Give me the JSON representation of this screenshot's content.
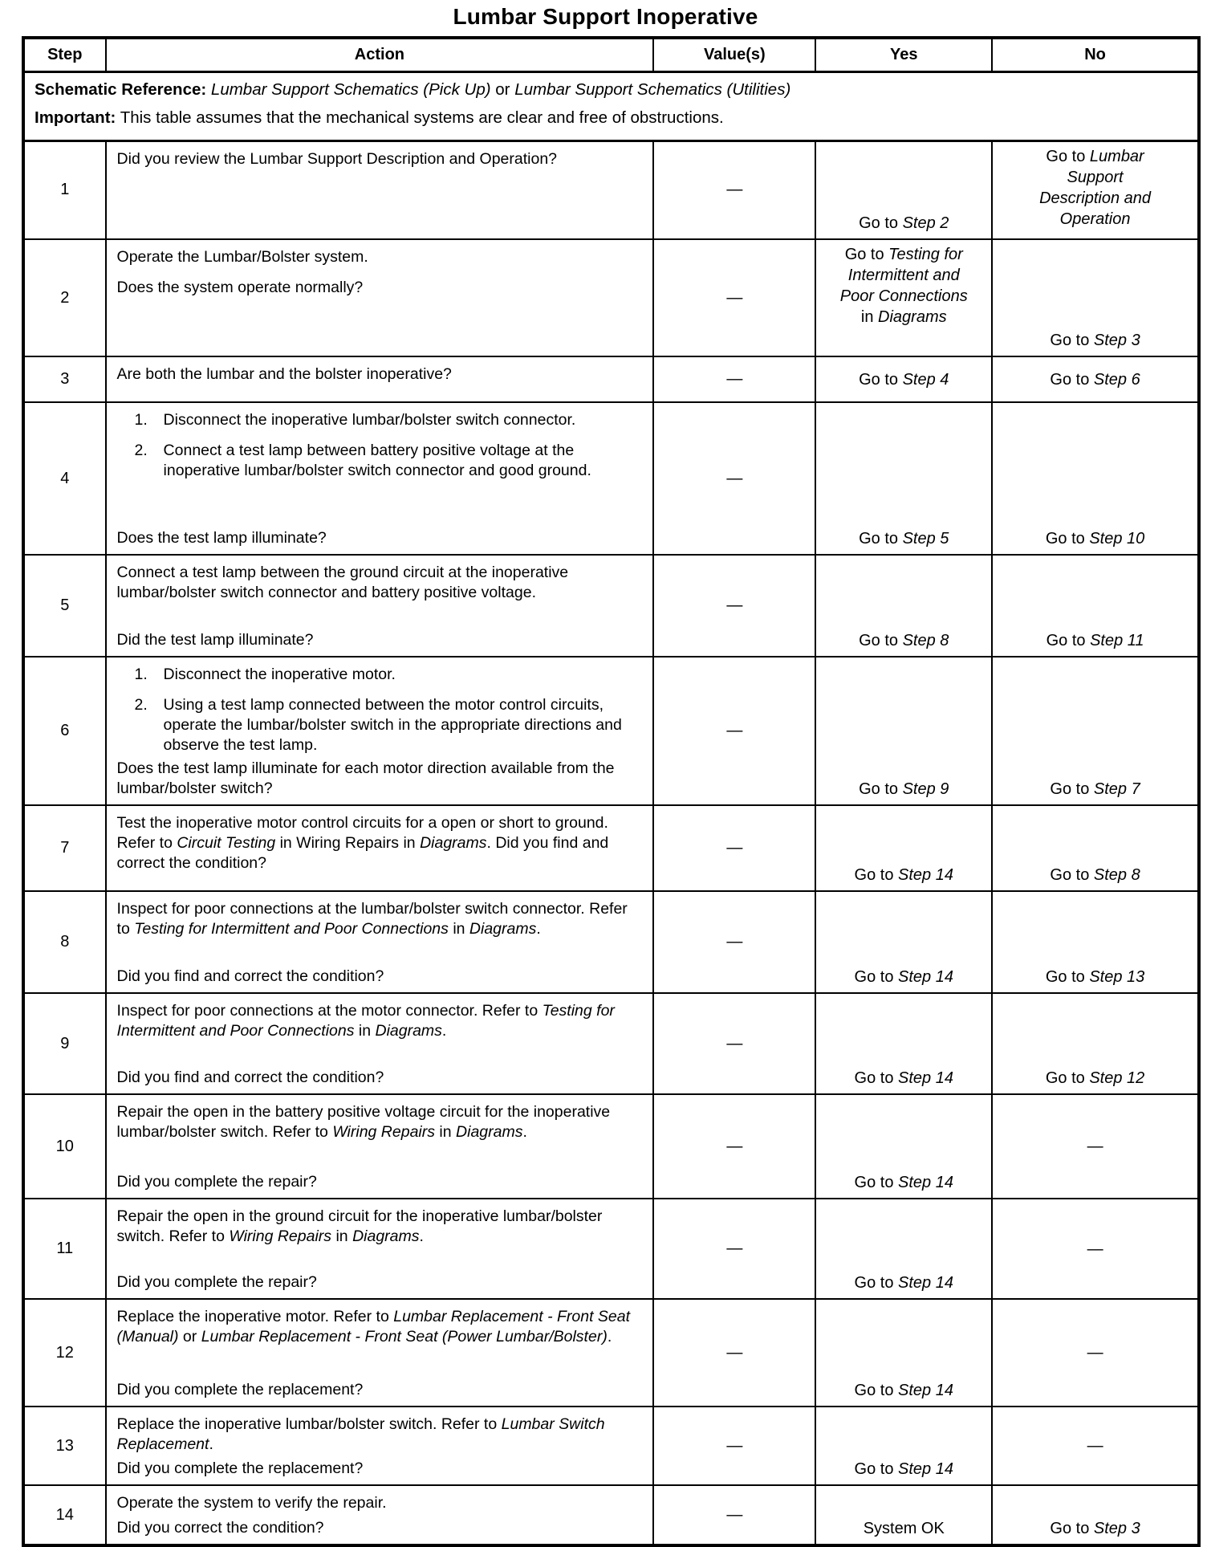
{
  "title": "Lumbar Support Inoperative",
  "table": {
    "headers": [
      "Step",
      "Action",
      "Value(s)",
      "Yes",
      "No"
    ],
    "schematic": {
      "label": "Schematic Reference:",
      "ref1": "Lumbar Support Schematics (Pick Up)",
      "or_word": "or",
      "ref2": "Lumbar Support Schematics (Utilities)"
    },
    "important": {
      "label": "Important:",
      "text": "This table assumes that the mechanical systems are clear and free of obstructions."
    },
    "rows": [
      {
        "step": "1",
        "action": [
          {
            "seg": [
              {
                "t": "Did you review the Lumbar Support Description and Operation?"
              }
            ]
          }
        ],
        "value": "—",
        "yes": {
          "pos": "bottom",
          "seg": [
            {
              "t": "Go to "
            },
            {
              "t": "Step 2",
              "i": true
            }
          ]
        },
        "no": {
          "pos": "top",
          "seg": [
            {
              "t": "Go to "
            },
            {
              "t": "Lumbar\nSupport\nDescription and\nOperation",
              "i": true
            }
          ]
        }
      },
      {
        "step": "2",
        "action": [
          {
            "seg": [
              {
                "t": "Operate the Lumbar/Bolster system."
              }
            ]
          },
          {
            "seg": [
              {
                "t": "Does the system operate normally?"
              }
            ]
          }
        ],
        "value": "—",
        "yes": {
          "pos": "top",
          "seg": [
            {
              "t": "Go to "
            },
            {
              "t": "Testing for\nIntermittent and\nPoor Connections",
              "i": true
            },
            {
              "t": "\nin "
            },
            {
              "t": "Diagrams",
              "i": true
            }
          ]
        },
        "no": {
          "pos": "bottom",
          "seg": [
            {
              "t": "Go to "
            },
            {
              "t": "Step 3",
              "i": true
            }
          ]
        }
      },
      {
        "step": "3",
        "action": [
          {
            "seg": [
              {
                "t": "Are both the lumbar and the bolster inoperative?"
              }
            ]
          }
        ],
        "value": "—",
        "yes": {
          "pos": "center",
          "seg": [
            {
              "t": "Go to "
            },
            {
              "t": "Step 4",
              "i": true
            }
          ]
        },
        "no": {
          "pos": "center",
          "seg": [
            {
              "t": "Go to "
            },
            {
              "t": "Step 6",
              "i": true
            }
          ]
        }
      },
      {
        "step": "4",
        "qb": true,
        "action": [
          {
            "n": "1.",
            "seg": [
              {
                "t": "Disconnect the inoperative lumbar/bolster switch connector."
              }
            ]
          },
          {
            "n": "2.",
            "seg": [
              {
                "t": "Connect a test lamp between battery positive voltage at the inoperative lumbar/bolster switch connector and good ground."
              }
            ]
          },
          {
            "seg": [
              {
                "t": "Does the test lamp illuminate?"
              }
            ]
          }
        ],
        "value": "—",
        "yes": {
          "pos": "bottom",
          "seg": [
            {
              "t": "Go to "
            },
            {
              "t": "Step 5",
              "i": true
            }
          ]
        },
        "no": {
          "pos": "bottom",
          "seg": [
            {
              "t": "Go to "
            },
            {
              "t": "Step 10",
              "i": true
            }
          ]
        }
      },
      {
        "step": "5",
        "qb": true,
        "action": [
          {
            "seg": [
              {
                "t": "Connect a test lamp between the ground circuit at the inoperative lumbar/bolster switch connector and battery positive voltage."
              }
            ]
          },
          {
            "seg": [
              {
                "t": "Did the test lamp illuminate?"
              }
            ]
          }
        ],
        "value": "—",
        "yes": {
          "pos": "bottom",
          "seg": [
            {
              "t": "Go to "
            },
            {
              "t": "Step 8",
              "i": true
            }
          ]
        },
        "no": {
          "pos": "bottom",
          "seg": [
            {
              "t": "Go to "
            },
            {
              "t": "Step 11",
              "i": true
            }
          ]
        }
      },
      {
        "step": "6",
        "qb": true,
        "action": [
          {
            "n": "1.",
            "seg": [
              {
                "t": "Disconnect the inoperative motor."
              }
            ]
          },
          {
            "n": "2.",
            "seg": [
              {
                "t": "Using a test lamp connected between the motor control circuits, operate the lumbar/bolster switch in the appropriate directions and observe the test lamp."
              }
            ]
          },
          {
            "seg": [
              {
                "t": "Does the test lamp illuminate for each motor direction available from the lumbar/bolster switch?"
              }
            ]
          }
        ],
        "value": "—",
        "yes": {
          "pos": "bottom",
          "seg": [
            {
              "t": "Go to "
            },
            {
              "t": "Step 9",
              "i": true
            }
          ]
        },
        "no": {
          "pos": "bottom",
          "seg": [
            {
              "t": "Go to "
            },
            {
              "t": "Step 7",
              "i": true
            }
          ]
        }
      },
      {
        "step": "7",
        "action": [
          {
            "seg": [
              {
                "t": "Test the inoperative motor control circuits for a open or short to ground. Refer to "
              },
              {
                "t": "Circuit Testing",
                "i": true
              },
              {
                "t": " in Wiring Repairs in "
              },
              {
                "t": "Diagrams",
                "i": true
              },
              {
                "t": ". Did you find and correct the condition?"
              }
            ]
          }
        ],
        "value": "—",
        "yes": {
          "pos": "bottom",
          "seg": [
            {
              "t": "Go to "
            },
            {
              "t": "Step 14",
              "i": true
            }
          ]
        },
        "no": {
          "pos": "bottom",
          "seg": [
            {
              "t": "Go to "
            },
            {
              "t": "Step 8",
              "i": true
            }
          ]
        }
      },
      {
        "step": "8",
        "qb": true,
        "action": [
          {
            "seg": [
              {
                "t": "Inspect for poor connections at the lumbar/bolster switch connector. Refer to "
              },
              {
                "t": "Testing for Intermittent and Poor Connections",
                "i": true
              },
              {
                "t": " in "
              },
              {
                "t": "Diagrams",
                "i": true
              },
              {
                "t": "."
              }
            ]
          },
          {
            "seg": [
              {
                "t": "Did you find and correct the condition?"
              }
            ]
          }
        ],
        "value": "—",
        "yes": {
          "pos": "bottom",
          "seg": [
            {
              "t": "Go to "
            },
            {
              "t": "Step 14",
              "i": true
            }
          ]
        },
        "no": {
          "pos": "bottom",
          "seg": [
            {
              "t": "Go to "
            },
            {
              "t": "Step 13",
              "i": true
            }
          ]
        }
      },
      {
        "step": "9",
        "qb": true,
        "action": [
          {
            "seg": [
              {
                "t": "Inspect for poor connections at the motor connector. Refer to "
              },
              {
                "t": "Testing for Intermittent and Poor Connections",
                "i": true
              },
              {
                "t": " in "
              },
              {
                "t": "Diagrams",
                "i": true
              },
              {
                "t": "."
              }
            ]
          },
          {
            "seg": [
              {
                "t": "Did you find and correct the condition?"
              }
            ]
          }
        ],
        "value": "—",
        "yes": {
          "pos": "bottom",
          "seg": [
            {
              "t": "Go to "
            },
            {
              "t": "Step 14",
              "i": true
            }
          ]
        },
        "no": {
          "pos": "bottom",
          "seg": [
            {
              "t": "Go to "
            },
            {
              "t": "Step 12",
              "i": true
            }
          ]
        }
      },
      {
        "step": "10",
        "qb": true,
        "action": [
          {
            "seg": [
              {
                "t": "Repair the open in the battery positive voltage circuit for the inoperative lumbar/bolster switch. Refer to "
              },
              {
                "t": "Wiring Repairs",
                "i": true
              },
              {
                "t": " in "
              },
              {
                "t": "Diagrams",
                "i": true
              },
              {
                "t": "."
              }
            ]
          },
          {
            "seg": [
              {
                "t": "Did you complete the repair?"
              }
            ]
          }
        ],
        "value": "—",
        "yes": {
          "pos": "bottom",
          "seg": [
            {
              "t": "Go to "
            },
            {
              "t": "Step 14",
              "i": true
            }
          ]
        },
        "no": {
          "pos": "center",
          "seg": [
            {
              "t": "—"
            }
          ]
        }
      },
      {
        "step": "11",
        "qb": true,
        "action": [
          {
            "seg": [
              {
                "t": "Repair the open in the ground circuit for the inoperative lumbar/bolster switch. Refer to "
              },
              {
                "t": "Wiring Repairs",
                "i": true
              },
              {
                "t": " in "
              },
              {
                "t": "Diagrams",
                "i": true
              },
              {
                "t": "."
              }
            ]
          },
          {
            "seg": [
              {
                "t": "Did you complete the repair?"
              }
            ]
          }
        ],
        "value": "—",
        "yes": {
          "pos": "bottom",
          "seg": [
            {
              "t": "Go to "
            },
            {
              "t": "Step 14",
              "i": true
            }
          ]
        },
        "no": {
          "pos": "center",
          "seg": [
            {
              "t": "—"
            }
          ]
        }
      },
      {
        "step": "12",
        "qb": true,
        "action": [
          {
            "seg": [
              {
                "t": "Replace the inoperative motor. Refer to "
              },
              {
                "t": "Lumbar Replacement - Front Seat (Manual)",
                "i": true
              },
              {
                "t": " or "
              },
              {
                "t": "Lumbar Replacement - Front Seat (Power Lumbar/Bolster)",
                "i": true
              },
              {
                "t": "."
              }
            ]
          },
          {
            "seg": [
              {
                "t": "Did you complete the replacement?"
              }
            ]
          }
        ],
        "value": "—",
        "yes": {
          "pos": "bottom",
          "seg": [
            {
              "t": "Go to "
            },
            {
              "t": "Step 14",
              "i": true
            }
          ]
        },
        "no": {
          "pos": "center",
          "seg": [
            {
              "t": "—"
            }
          ]
        }
      },
      {
        "step": "13",
        "qb": true,
        "action": [
          {
            "seg": [
              {
                "t": "Replace the inoperative lumbar/bolster switch. Refer to "
              },
              {
                "t": "Lumbar Switch Replacement",
                "i": true
              },
              {
                "t": "."
              }
            ]
          },
          {
            "seg": [
              {
                "t": "Did you complete the replacement?"
              }
            ]
          }
        ],
        "value": "—",
        "yes": {
          "pos": "bottom",
          "seg": [
            {
              "t": "Go to "
            },
            {
              "t": "Step 14",
              "i": true
            }
          ]
        },
        "no": {
          "pos": "center",
          "seg": [
            {
              "t": "—"
            }
          ]
        }
      },
      {
        "step": "14",
        "qb": true,
        "action": [
          {
            "seg": [
              {
                "t": "Operate the system to verify the repair."
              }
            ]
          },
          {
            "seg": [
              {
                "t": "Did you correct the condition?"
              }
            ]
          }
        ],
        "value": "—",
        "yes": {
          "pos": "bottom",
          "seg": [
            {
              "t": "System OK"
            }
          ]
        },
        "no": {
          "pos": "bottom",
          "seg": [
            {
              "t": "Go to "
            },
            {
              "t": "Step 3",
              "i": true
            }
          ]
        }
      }
    ]
  }
}
